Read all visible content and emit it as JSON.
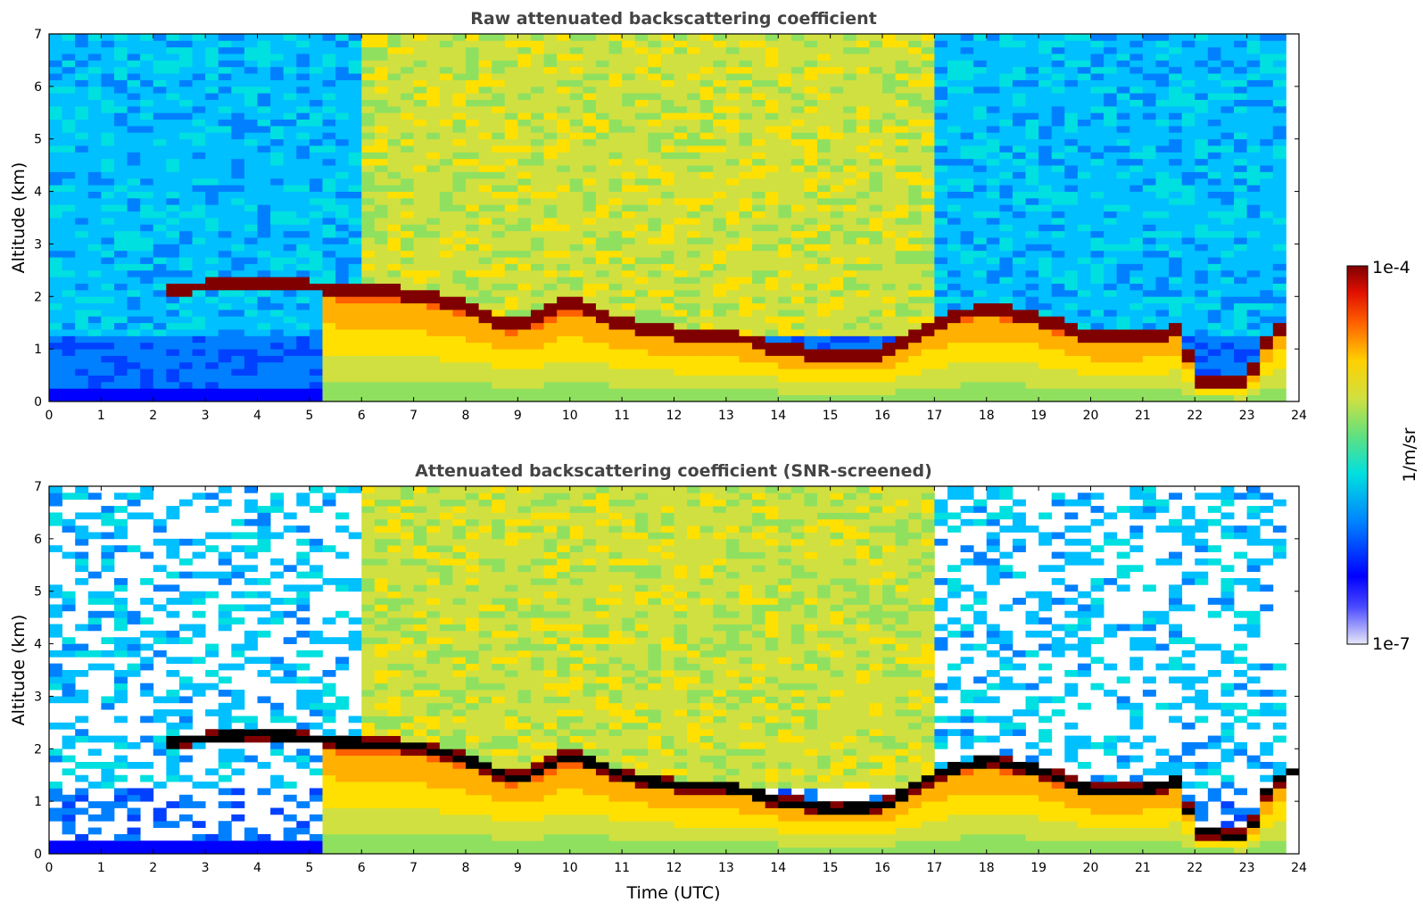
{
  "chart_data": [
    {
      "type": "heatmap",
      "title": "Raw attenuated backscattering coefficient",
      "xlabel": "",
      "ylabel": "Altitude (km)",
      "xlim": [
        0,
        24
      ],
      "ylim": [
        0,
        7
      ],
      "x_ticks": [
        "0",
        "1",
        "2",
        "3",
        "4",
        "5",
        "6",
        "7",
        "8",
        "9",
        "10",
        "11",
        "12",
        "13",
        "14",
        "15",
        "16",
        "17",
        "18",
        "19",
        "20",
        "21",
        "22",
        "23",
        "24"
      ],
      "y_ticks": [
        "0",
        "1",
        "2",
        "3",
        "4",
        "5",
        "6",
        "7"
      ],
      "screened": false,
      "features": {
        "cloud_base_km": [
          [
            2.2,
            2.1
          ],
          [
            3.0,
            2.2
          ],
          [
            4.0,
            2.3
          ],
          [
            5.0,
            2.2
          ],
          [
            6.0,
            2.1
          ],
          [
            7.0,
            2.05
          ],
          [
            8.0,
            1.8
          ],
          [
            9.0,
            1.4
          ],
          [
            10.0,
            1.9
          ],
          [
            11.0,
            1.5
          ],
          [
            12.0,
            1.3
          ],
          [
            13.0,
            1.3
          ],
          [
            14.0,
            1.0
          ],
          [
            15.0,
            0.85
          ],
          [
            16.0,
            0.9
          ],
          [
            17.0,
            1.5
          ],
          [
            18.0,
            1.8
          ],
          [
            19.0,
            1.6
          ],
          [
            20.0,
            1.2
          ],
          [
            21.0,
            1.2
          ],
          [
            21.7,
            1.4
          ],
          [
            22.0,
            0.45
          ],
          [
            23.0,
            0.3
          ],
          [
            23.4,
            1.2
          ],
          [
            23.8,
            1.6
          ]
        ],
        "boundary_layer_top_km": 0.3
      }
    },
    {
      "type": "heatmap",
      "title": "Attenuated backscattering coefficient (SNR-screened)",
      "xlabel": "Time (UTC)",
      "ylabel": "Altitude (km)",
      "xlim": [
        0,
        24
      ],
      "ylim": [
        0,
        7
      ],
      "x_ticks": [
        "0",
        "1",
        "2",
        "3",
        "4",
        "5",
        "6",
        "7",
        "8",
        "9",
        "10",
        "11",
        "12",
        "13",
        "14",
        "15",
        "16",
        "17",
        "18",
        "19",
        "20",
        "21",
        "22",
        "23",
        "24"
      ],
      "y_ticks": [
        "0",
        "1",
        "2",
        "3",
        "4",
        "5",
        "6",
        "7"
      ],
      "screened": true
    }
  ],
  "colorbar": {
    "max_label": "1e-4",
    "min_label": "1e-7",
    "unit_label": "1/m/sr",
    "min_value": 1e-07,
    "max_value": 0.0001,
    "scale": "log",
    "colormap": "jet"
  }
}
